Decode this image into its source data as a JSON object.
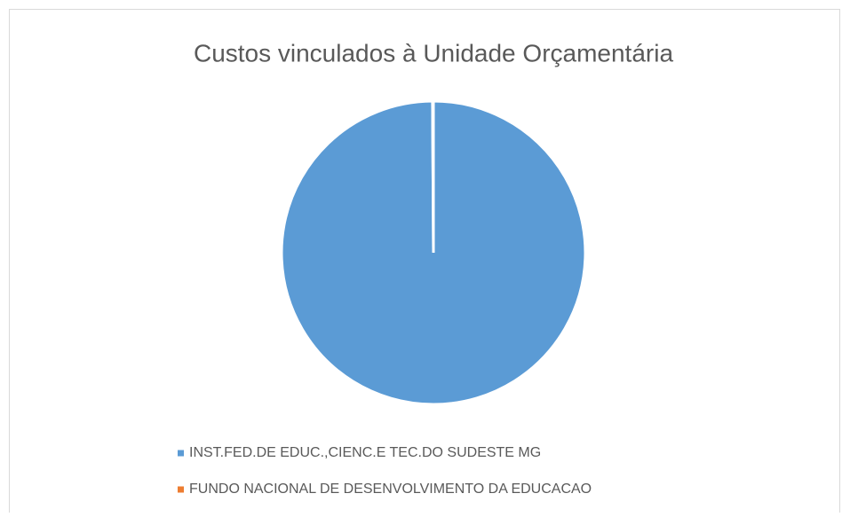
{
  "chart_data": {
    "type": "pie",
    "title": "Custos vinculados à Unidade Orçamentária",
    "categories": [
      "INST.FED.DE EDUC.,CIENC.E TEC.DO SUDESTE MG",
      "FUNDO NACIONAL DE DESENVOLVIMENTO DA EDUCACAO"
    ],
    "values": [
      99.9,
      0.1
    ],
    "colors": [
      "#5b9bd5",
      "#ed7d31"
    ],
    "legend": "bottom"
  }
}
